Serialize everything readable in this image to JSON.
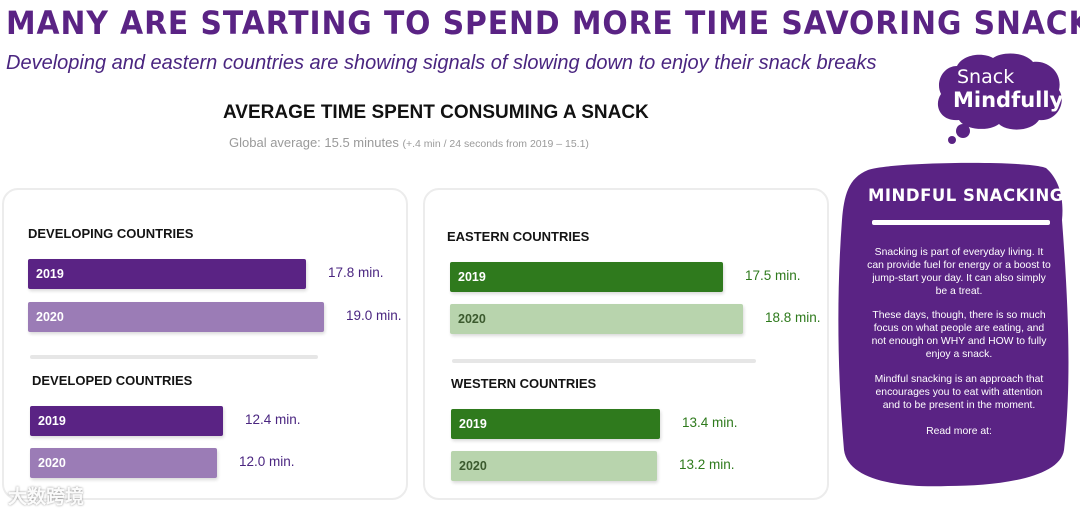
{
  "header": {
    "headline": "MANY ARE STARTING TO SPEND MORE TIME SAVORING SNACKS",
    "subline": "Developing and eastern countries are showing signals of slowing down to enjoy their snack breaks"
  },
  "logo": {
    "line1": "Snack",
    "line2": "Mindfully"
  },
  "chart_data": {
    "type": "bar",
    "title": "AVERAGE TIME SPENT CONSUMING A SNACK",
    "global_average_label": "Global average: 15.5 minutes",
    "global_average_note": "(+.4 min / 24 seconds from 2019 – 15.1)",
    "unit": "min.",
    "groups": [
      {
        "name": "DEVELOPING COUNTRIES",
        "series": [
          {
            "year": "2019",
            "value": 17.8,
            "display": "17.8 min."
          },
          {
            "year": "2020",
            "value": 19.0,
            "display": "19.0 min."
          }
        ]
      },
      {
        "name": "DEVELOPED COUNTRIES",
        "series": [
          {
            "year": "2019",
            "value": 12.4,
            "display": "12.4 min."
          },
          {
            "year": "2020",
            "value": 12.0,
            "display": "12.0 min."
          }
        ]
      },
      {
        "name": "EASTERN COUNTRIES",
        "series": [
          {
            "year": "2019",
            "value": 17.5,
            "display": "17.5 min."
          },
          {
            "year": "2020",
            "value": 18.8,
            "display": "18.8 min."
          }
        ]
      },
      {
        "name": "WESTERN COUNTRIES",
        "series": [
          {
            "year": "2019",
            "value": 13.4,
            "display": "13.4 min."
          },
          {
            "year": "2020",
            "value": 13.2,
            "display": "13.2 min."
          }
        ]
      }
    ],
    "colors": {
      "purple_2019": "#5a2384",
      "purple_2020": "#9b7cb6",
      "green_2019": "#2f7a1d",
      "green_2020": "#b8d4ad"
    }
  },
  "sidebar": {
    "title": "MINDFUL SNACKING",
    "p1": "Snacking is part of everyday living. It can provide fuel for energy or a boost to jump-start your day. It can also simply be a treat.",
    "p2": "These days, though, there is so much focus on what people are eating, and not enough on WHY and HOW to fully enjoy a snack.",
    "p3": "Mindful snacking is an approach that encourages you to eat with attention and to be present in the moment.",
    "read_more": "Read more at:",
    "color": "#5a2384"
  },
  "watermark": {
    "text": "大数跨境"
  }
}
